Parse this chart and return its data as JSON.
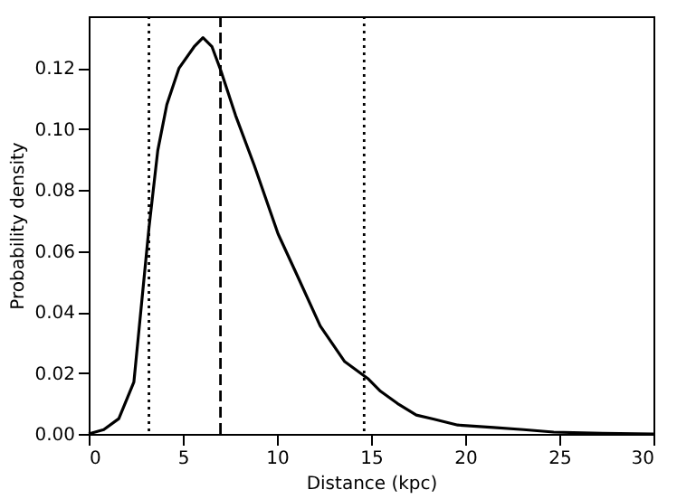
{
  "chart_data": {
    "type": "line",
    "xlabel": "Distance (kpc)",
    "ylabel": "Probability density",
    "x": [
      0,
      0.8,
      1.6,
      2.4,
      3.2,
      3.67,
      4.15,
      4.8,
      5.6,
      6.07,
      6.55,
      7.03,
      7.8,
      8.8,
      10.06,
      11.0,
      12.3,
      13.6,
      14.86,
      15.5,
      16.4,
      17.4,
      18.3,
      19.6,
      21.5,
      23.1,
      24.7,
      27.3,
      30
    ],
    "series": [
      {
        "color": "#000000",
        "values": [
          0,
          0.0014,
          0.005,
          0.017,
          0.0675,
          0.093,
          0.108,
          0.12,
          0.127,
          0.13,
          0.127,
          0.119,
          0.1045,
          0.088,
          0.0656,
          0.053,
          0.0354,
          0.0237,
          0.018,
          0.014,
          0.01,
          0.0062,
          0.0049,
          0.0029,
          0.0021,
          0.0014,
          0.0006,
          0.0002,
          0
        ]
      }
    ],
    "xlim": [
      0,
      30
    ],
    "ylim": [
      0,
      0.137
    ],
    "xticks": [
      0,
      5,
      10,
      15,
      20,
      25,
      30
    ],
    "yticks": [
      {
        "value": 0,
        "label": "0.00"
      },
      {
        "value": 0.02,
        "label": "0.02"
      },
      {
        "value": 0.04,
        "label": "0.04"
      },
      {
        "value": 0.06,
        "label": "0.06"
      },
      {
        "value": 0.08,
        "label": "0.08"
      },
      {
        "value": 0.1,
        "label": "0.10"
      },
      {
        "value": 0.12,
        "label": "0.12"
      }
    ],
    "ref_lines": [
      {
        "axis": "x",
        "value": 3.2,
        "line_style": "dotted",
        "color": "#000000"
      },
      {
        "axis": "x",
        "value": 7.0,
        "line_style": "dashed",
        "color": "#000000"
      },
      {
        "axis": "x",
        "value": 14.63,
        "line_style": "dotted",
        "color": "#000000"
      }
    ],
    "grid": false,
    "line_style": "solid",
    "marker": "none"
  }
}
